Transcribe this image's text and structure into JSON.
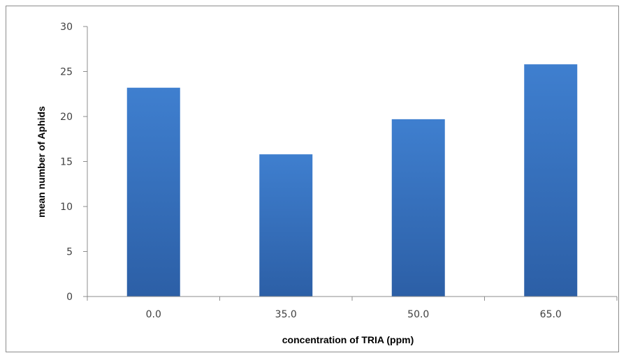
{
  "chart_data": {
    "type": "bar",
    "categories": [
      "0.0",
      "35.0",
      "50.0",
      "65.0"
    ],
    "values": [
      23.2,
      15.8,
      19.7,
      25.8
    ],
    "title": "",
    "xlabel": "concentration of TRIA (ppm)",
    "ylabel": "mean number of Aphids",
    "ylim": [
      0,
      30
    ],
    "yticks": [
      "0",
      "5",
      "10",
      "15",
      "20",
      "25",
      "30"
    ],
    "grid": false,
    "legend": "none",
    "colors": {
      "bar_light": "#3f7fcf",
      "bar_dark": "#2c5fa6",
      "axis": "#8c8c8c",
      "frame": "#8c8c8c"
    }
  }
}
